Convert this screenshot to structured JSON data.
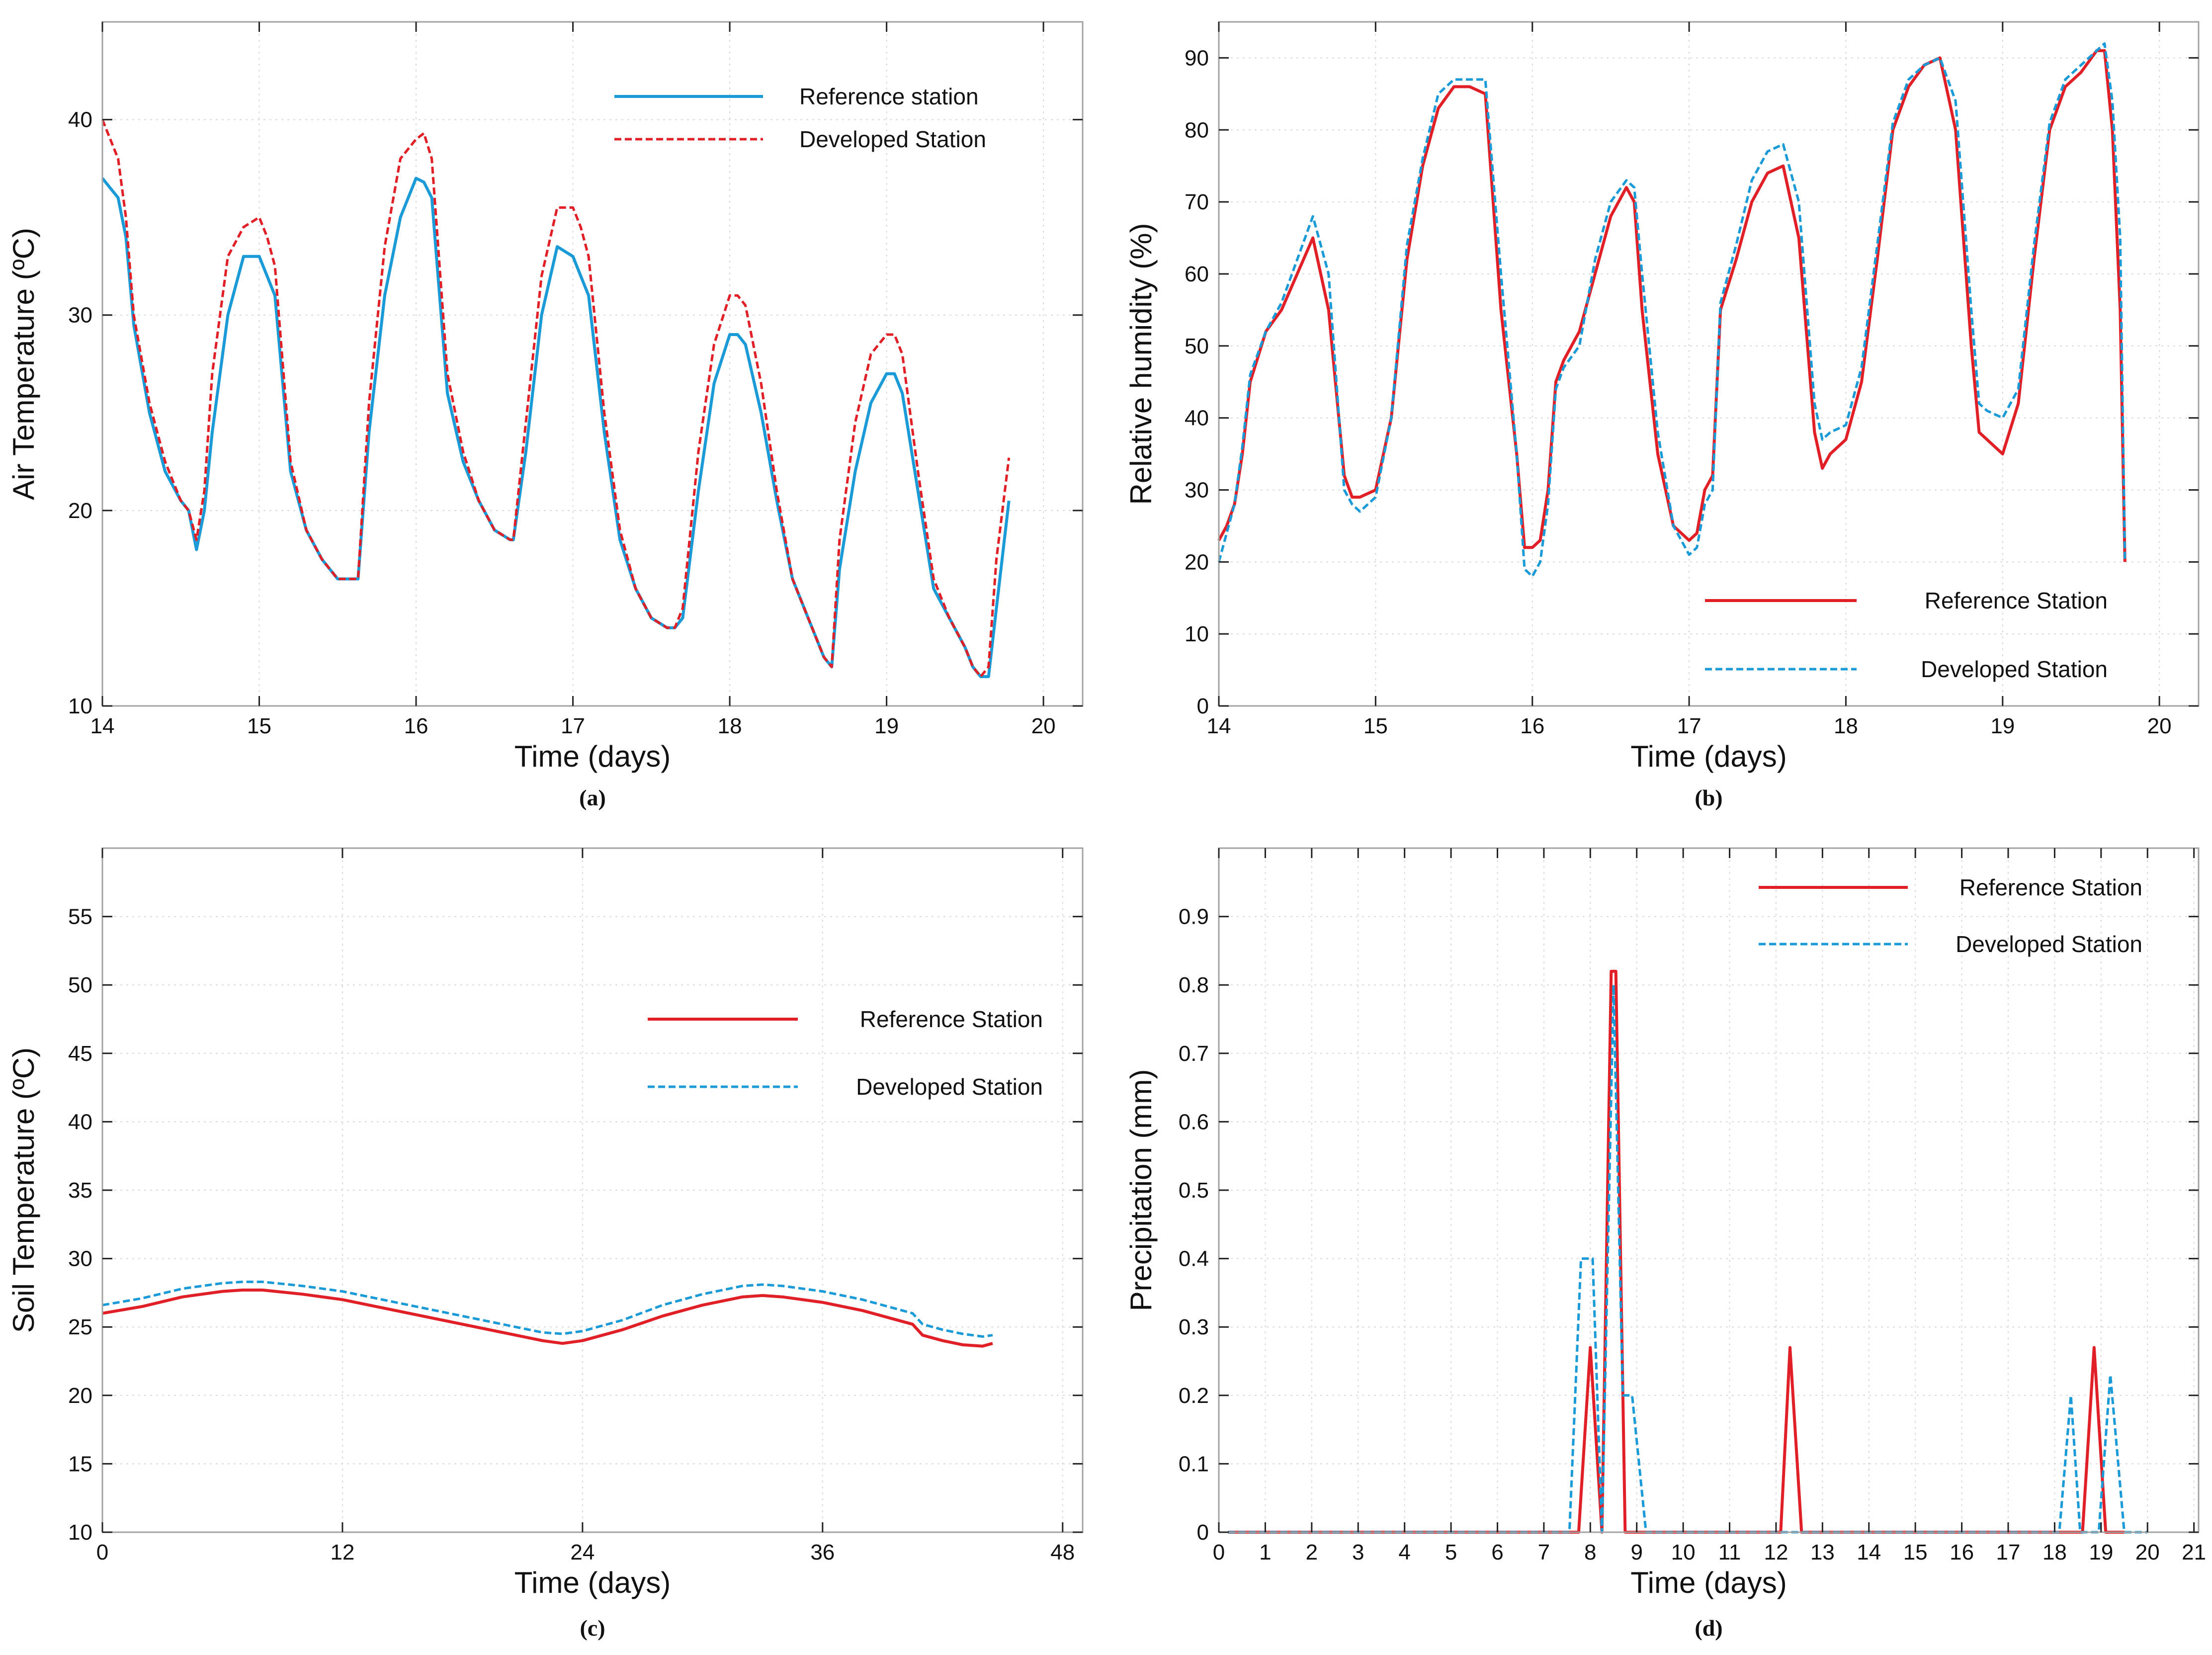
{
  "colors": {
    "red": "#e01f27",
    "blue": "#1a9ad6",
    "frame": "#a3a3a3",
    "grid": "#d9d9d9"
  },
  "chart_data": [
    {
      "type": "line",
      "panel_label": "(a)",
      "xlabel": "Time (days)",
      "ylabel": "Air Temperature (ºC)",
      "xlim": [
        14,
        20.25
      ],
      "ylim": [
        10,
        45
      ],
      "xticks": [
        14,
        15,
        16,
        17,
        18,
        19,
        20
      ],
      "yticks": [
        10,
        20,
        30,
        40
      ],
      "grid": true,
      "legend_position": "top-right",
      "series": [
        {
          "name": "Reference station",
          "color": "#1a9ad6",
          "style": "solid",
          "x": [
            14.0,
            14.05,
            14.1,
            14.15,
            14.2,
            14.3,
            14.4,
            14.5,
            14.55,
            14.6,
            14.65,
            14.7,
            14.8,
            14.9,
            15.0,
            15.05,
            15.1,
            15.2,
            15.3,
            15.4,
            15.5,
            15.6,
            15.63,
            15.7,
            15.8,
            15.9,
            16.0,
            16.05,
            16.1,
            16.2,
            16.3,
            16.4,
            16.5,
            16.6,
            16.62,
            16.7,
            16.8,
            16.9,
            17.0,
            17.05,
            17.1,
            17.2,
            17.3,
            17.4,
            17.5,
            17.6,
            17.65,
            17.7,
            17.8,
            17.9,
            18.0,
            18.05,
            18.1,
            18.2,
            18.3,
            18.4,
            18.5,
            18.6,
            18.65,
            18.7,
            18.8,
            18.9,
            19.0,
            19.05,
            19.1,
            19.2,
            19.3,
            19.4,
            19.5,
            19.55,
            19.6,
            19.65,
            19.7,
            19.78
          ],
          "y": [
            37,
            36.5,
            36,
            34,
            29.5,
            25,
            22,
            20.5,
            20,
            18,
            20,
            24,
            30,
            33,
            33,
            32,
            31,
            22,
            19,
            17.5,
            16.5,
            16.5,
            16.5,
            24,
            31,
            35,
            37,
            36.8,
            36,
            26,
            22.5,
            20.5,
            19,
            18.5,
            18.5,
            23,
            30,
            33.5,
            33,
            32,
            31,
            24,
            18.5,
            16,
            14.5,
            14,
            14,
            14.5,
            21,
            26.5,
            29,
            29,
            28.5,
            25,
            20.5,
            16.5,
            14.5,
            12.5,
            12,
            17,
            22,
            25.5,
            27,
            27,
            26,
            21,
            16,
            14.5,
            13,
            12,
            11.5,
            11.5,
            15,
            20.5
          ]
        },
        {
          "name": "Developed Station",
          "color": "#e01f27",
          "style": "dashed",
          "x": [
            14.0,
            14.05,
            14.1,
            14.15,
            14.2,
            14.3,
            14.4,
            14.5,
            14.55,
            14.6,
            14.65,
            14.7,
            14.8,
            14.9,
            15.0,
            15.05,
            15.1,
            15.2,
            15.3,
            15.4,
            15.5,
            15.6,
            15.63,
            15.7,
            15.8,
            15.9,
            16.0,
            16.05,
            16.1,
            16.2,
            16.3,
            16.4,
            16.5,
            16.6,
            16.62,
            16.7,
            16.8,
            16.9,
            17.0,
            17.05,
            17.1,
            17.2,
            17.3,
            17.4,
            17.5,
            17.6,
            17.65,
            17.7,
            17.8,
            17.9,
            18.0,
            18.05,
            18.1,
            18.2,
            18.3,
            18.4,
            18.5,
            18.6,
            18.65,
            18.7,
            18.8,
            18.9,
            19.0,
            19.05,
            19.1,
            19.2,
            19.3,
            19.4,
            19.5,
            19.55,
            19.6,
            19.65,
            19.7,
            19.78
          ],
          "y": [
            40,
            39,
            38,
            35,
            30,
            25.5,
            22.5,
            20.5,
            20,
            18.5,
            21,
            27,
            33,
            34.5,
            35,
            34,
            32.5,
            22.5,
            19,
            17.5,
            16.5,
            16.5,
            16.5,
            25.5,
            33.5,
            38,
            39,
            39.3,
            38,
            27,
            23,
            20.5,
            19,
            18.5,
            18.5,
            24.5,
            32,
            35.5,
            35.5,
            34.5,
            33,
            25,
            19,
            16,
            14.5,
            14,
            14,
            15,
            23,
            28.5,
            31,
            31,
            30.5,
            26.5,
            21,
            16.5,
            14.5,
            12.5,
            12,
            18.5,
            24.5,
            28,
            29,
            29,
            28,
            22,
            16.5,
            14.5,
            13,
            12,
            11.5,
            12,
            17.5,
            22.7
          ]
        }
      ]
    },
    {
      "type": "line",
      "panel_label": "(b)",
      "xlabel": "Time (days)",
      "ylabel": "Relative humidity (%)",
      "xlim": [
        14,
        20.25
      ],
      "ylim": [
        0,
        95
      ],
      "xticks": [
        14,
        15,
        16,
        17,
        18,
        19,
        20
      ],
      "yticks": [
        0,
        10,
        20,
        30,
        40,
        50,
        60,
        70,
        80,
        90
      ],
      "grid": true,
      "legend_position": "bottom-right",
      "series": [
        {
          "name": "Reference Station",
          "color": "#e01f27",
          "style": "solid",
          "x": [
            14.0,
            14.05,
            14.1,
            14.15,
            14.2,
            14.3,
            14.4,
            14.5,
            14.6,
            14.7,
            14.8,
            14.85,
            14.9,
            15.0,
            15.1,
            15.2,
            15.3,
            15.4,
            15.5,
            15.6,
            15.7,
            15.8,
            15.9,
            15.95,
            16.0,
            16.05,
            16.1,
            16.15,
            16.2,
            16.3,
            16.4,
            16.5,
            16.6,
            16.65,
            16.7,
            16.8,
            16.9,
            17.0,
            17.05,
            17.1,
            17.15,
            17.2,
            17.3,
            17.4,
            17.5,
            17.6,
            17.7,
            17.8,
            17.85,
            17.9,
            18.0,
            18.1,
            18.2,
            18.3,
            18.4,
            18.5,
            18.6,
            18.7,
            18.8,
            18.85,
            18.9,
            19.0,
            19.1,
            19.2,
            19.3,
            19.4,
            19.5,
            19.6,
            19.65,
            19.7,
            19.75,
            19.78
          ],
          "y": [
            23,
            25,
            28,
            35,
            45,
            52,
            55,
            60,
            65,
            55,
            32,
            29,
            29,
            30,
            40,
            62,
            75,
            83,
            86,
            86,
            85,
            55,
            35,
            22,
            22,
            23,
            30,
            45,
            48,
            52,
            60,
            68,
            72,
            70,
            55,
            35,
            25,
            23,
            24,
            30,
            32,
            55,
            62,
            70,
            74,
            75,
            65,
            38,
            33,
            35,
            37,
            45,
            62,
            80,
            86,
            89,
            90,
            80,
            50,
            38,
            37,
            35,
            42,
            62,
            80,
            86,
            88,
            91,
            91,
            80,
            55,
            20
          ]
        },
        {
          "name": "Developed Station",
          "color": "#1a9ad6",
          "style": "dashed",
          "x": [
            14.0,
            14.05,
            14.1,
            14.15,
            14.2,
            14.3,
            14.4,
            14.5,
            14.6,
            14.7,
            14.8,
            14.85,
            14.9,
            15.0,
            15.1,
            15.2,
            15.3,
            15.4,
            15.5,
            15.6,
            15.7,
            15.8,
            15.9,
            15.95,
            16.0,
            16.05,
            16.1,
            16.15,
            16.2,
            16.3,
            16.4,
            16.5,
            16.6,
            16.65,
            16.7,
            16.8,
            16.9,
            17.0,
            17.05,
            17.1,
            17.15,
            17.2,
            17.3,
            17.4,
            17.5,
            17.6,
            17.7,
            17.8,
            17.85,
            17.9,
            18.0,
            18.1,
            18.2,
            18.3,
            18.4,
            18.5,
            18.6,
            18.7,
            18.8,
            18.85,
            18.9,
            19.0,
            19.1,
            19.2,
            19.3,
            19.4,
            19.5,
            19.6,
            19.65,
            19.7,
            19.75,
            19.78
          ],
          "y": [
            20,
            24,
            28,
            36,
            46,
            52,
            56,
            62,
            68,
            60,
            30,
            28,
            27,
            29,
            40,
            64,
            76,
            85,
            87,
            87,
            87,
            60,
            35,
            19,
            18,
            20,
            28,
            44,
            47,
            50,
            62,
            70,
            73,
            72,
            60,
            38,
            25,
            21,
            22,
            28,
            30,
            56,
            64,
            73,
            77,
            78,
            70,
            42,
            37,
            38,
            39,
            47,
            64,
            81,
            87,
            89,
            90,
            84,
            55,
            42,
            41,
            40,
            44,
            64,
            81,
            87,
            89,
            91,
            92,
            84,
            65,
            20
          ]
        }
      ]
    },
    {
      "type": "line",
      "panel_label": "(c)",
      "xlabel": "Time (days)",
      "ylabel": "Soil Temperature (ºC)",
      "xlim": [
        0,
        49
      ],
      "ylim": [
        10,
        60
      ],
      "xticks": [
        0,
        12,
        24,
        36,
        48
      ],
      "yticks": [
        10,
        15,
        20,
        25,
        30,
        35,
        40,
        45,
        50,
        55
      ],
      "grid": true,
      "legend_position": "right",
      "series": [
        {
          "name": "Reference Station",
          "color": "#e01f27",
          "style": "solid",
          "x": [
            0,
            2,
            4,
            6,
            7,
            8,
            10,
            12,
            14,
            16,
            18,
            20,
            22,
            23,
            24,
            26,
            28,
            30,
            32,
            33,
            34,
            36,
            38,
            40,
            40.5,
            41,
            42,
            43,
            44,
            44.5
          ],
          "y": [
            26,
            26.5,
            27.2,
            27.6,
            27.7,
            27.7,
            27.4,
            27,
            26.4,
            25.8,
            25.2,
            24.6,
            24,
            23.8,
            24,
            24.8,
            25.8,
            26.6,
            27.2,
            27.3,
            27.2,
            26.8,
            26.2,
            25.4,
            25.2,
            24.4,
            24,
            23.7,
            23.6,
            23.8
          ]
        },
        {
          "name": "Developed Station",
          "color": "#1a9ad6",
          "style": "dashed",
          "x": [
            0,
            2,
            4,
            6,
            7,
            8,
            10,
            12,
            14,
            16,
            18,
            20,
            22,
            23,
            24,
            26,
            28,
            30,
            32,
            33,
            34,
            36,
            38,
            40,
            40.5,
            41,
            42,
            43,
            44,
            44.5
          ],
          "y": [
            26.6,
            27.1,
            27.8,
            28.2,
            28.3,
            28.3,
            28,
            27.6,
            27,
            26.4,
            25.8,
            25.2,
            24.6,
            24.5,
            24.7,
            25.5,
            26.6,
            27.4,
            28,
            28.1,
            28,
            27.6,
            27,
            26.2,
            26,
            25.2,
            24.8,
            24.5,
            24.3,
            24.4
          ]
        }
      ]
    },
    {
      "type": "line",
      "panel_label": "(d)",
      "xlabel": "Time (days)",
      "ylabel": "Precipitation (mm)",
      "xlim": [
        0,
        21.1
      ],
      "ylim": [
        0,
        1.0
      ],
      "xticks": [
        0,
        1,
        2,
        3,
        4,
        5,
        6,
        7,
        8,
        9,
        10,
        11,
        12,
        13,
        14,
        15,
        16,
        17,
        18,
        19,
        20,
        21
      ],
      "yticks": [
        0,
        0.1,
        0.2,
        0.3,
        0.4,
        0.5,
        0.6,
        0.7,
        0.8,
        0.9
      ],
      "grid": true,
      "legend_position": "top-right",
      "series": [
        {
          "name": "Reference Station",
          "color": "#e01f27",
          "style": "solid",
          "x": [
            0.2,
            7.75,
            8.0,
            8.25,
            8.45,
            8.55,
            8.75,
            12.1,
            12.3,
            12.55,
            18.6,
            18.85,
            19.1,
            19.5
          ],
          "y": [
            0,
            0,
            0.27,
            0,
            0.82,
            0.82,
            0,
            0,
            0.27,
            0,
            0,
            0.27,
            0,
            0
          ]
        },
        {
          "name": "Developed Station",
          "color": "#1a9ad6",
          "style": "dashed",
          "x": [
            0.2,
            7.55,
            7.8,
            8.05,
            8.25,
            8.5,
            8.7,
            8.9,
            9.2,
            18.1,
            18.35,
            18.55,
            18.75,
            18.95,
            19.2,
            19.5,
            20.0
          ],
          "y": [
            0,
            0,
            0.4,
            0.4,
            0,
            0.8,
            0.2,
            0.2,
            0,
            0,
            0.2,
            0,
            0,
            0,
            0.23,
            0,
            0
          ]
        }
      ]
    }
  ]
}
